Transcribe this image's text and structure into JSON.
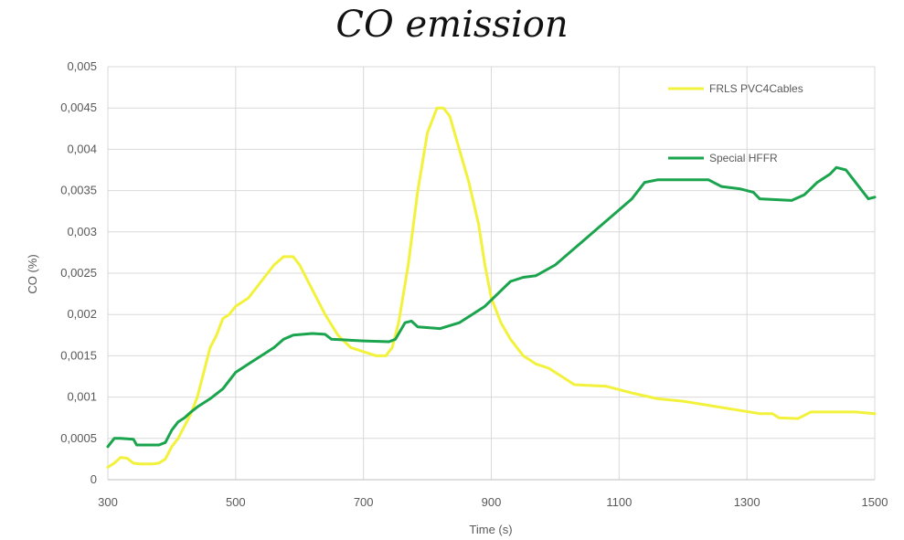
{
  "chart_data": {
    "type": "line",
    "title": "CO emission",
    "xlabel": "Time (s)",
    "ylabel": "CO (%)",
    "xlim": [
      300,
      1500
    ],
    "ylim": [
      0,
      0.005
    ],
    "x_ticks": [
      300,
      500,
      700,
      900,
      1100,
      1300,
      1500
    ],
    "x_tick_labels": [
      "300",
      "500",
      "700",
      "900",
      "1100",
      "1300",
      "1500"
    ],
    "y_ticks": [
      0,
      0.0005,
      0.001,
      0.0015,
      0.002,
      0.0025,
      0.003,
      0.0035,
      0.004,
      0.0045,
      0.005
    ],
    "y_tick_labels": [
      "0",
      "0,0005",
      "0,001",
      "0,0015",
      "0,002",
      "0,0025",
      "0,003",
      "0,0035",
      "0,004",
      "0,0045",
      "0,005"
    ],
    "grid": true,
    "legend_position": "top-right",
    "series": [
      {
        "name": "FRLS PVC4Cables",
        "color": "#f2f23c",
        "points": [
          [
            300,
            0.00015
          ],
          [
            310,
            0.0002
          ],
          [
            320,
            0.00027
          ],
          [
            330,
            0.00026
          ],
          [
            340,
            0.0002
          ],
          [
            350,
            0.00019
          ],
          [
            360,
            0.00019
          ],
          [
            370,
            0.00019
          ],
          [
            380,
            0.0002
          ],
          [
            390,
            0.00025
          ],
          [
            400,
            0.0004
          ],
          [
            410,
            0.0005
          ],
          [
            420,
            0.00065
          ],
          [
            430,
            0.0008
          ],
          [
            440,
            0.001
          ],
          [
            450,
            0.0013
          ],
          [
            460,
            0.0016
          ],
          [
            470,
            0.00175
          ],
          [
            480,
            0.00195
          ],
          [
            490,
            0.002
          ],
          [
            500,
            0.0021
          ],
          [
            520,
            0.0022
          ],
          [
            540,
            0.0024
          ],
          [
            560,
            0.0026
          ],
          [
            575,
            0.0027
          ],
          [
            590,
            0.0027
          ],
          [
            600,
            0.0026
          ],
          [
            620,
            0.0023
          ],
          [
            640,
            0.002
          ],
          [
            660,
            0.00175
          ],
          [
            680,
            0.0016
          ],
          [
            700,
            0.00155
          ],
          [
            720,
            0.0015
          ],
          [
            735,
            0.0015
          ],
          [
            745,
            0.0016
          ],
          [
            755,
            0.0019
          ],
          [
            770,
            0.0026
          ],
          [
            785,
            0.0035
          ],
          [
            800,
            0.0042
          ],
          [
            815,
            0.0045
          ],
          [
            825,
            0.0045
          ],
          [
            835,
            0.0044
          ],
          [
            850,
            0.004
          ],
          [
            865,
            0.0036
          ],
          [
            880,
            0.0031
          ],
          [
            890,
            0.0026
          ],
          [
            900,
            0.0022
          ],
          [
            915,
            0.0019
          ],
          [
            930,
            0.0017
          ],
          [
            950,
            0.0015
          ],
          [
            970,
            0.0014
          ],
          [
            990,
            0.00135
          ],
          [
            1010,
            0.00125
          ],
          [
            1030,
            0.00115
          ],
          [
            1080,
            0.00113
          ],
          [
            1120,
            0.00105
          ],
          [
            1160,
            0.00098
          ],
          [
            1200,
            0.00095
          ],
          [
            1240,
            0.0009
          ],
          [
            1280,
            0.00085
          ],
          [
            1320,
            0.0008
          ],
          [
            1340,
            0.0008
          ],
          [
            1350,
            0.00075
          ],
          [
            1380,
            0.00074
          ],
          [
            1400,
            0.00082
          ],
          [
            1440,
            0.00082
          ],
          [
            1470,
            0.00082
          ],
          [
            1500,
            0.0008
          ]
        ]
      },
      {
        "name": "Special HFFR",
        "color": "#1aa44e",
        "points": [
          [
            300,
            0.0004
          ],
          [
            305,
            0.00045
          ],
          [
            310,
            0.0005
          ],
          [
            320,
            0.0005
          ],
          [
            340,
            0.00049
          ],
          [
            345,
            0.00042
          ],
          [
            360,
            0.00042
          ],
          [
            380,
            0.00042
          ],
          [
            390,
            0.00045
          ],
          [
            400,
            0.0006
          ],
          [
            410,
            0.0007
          ],
          [
            420,
            0.00075
          ],
          [
            430,
            0.00082
          ],
          [
            440,
            0.00088
          ],
          [
            460,
            0.00098
          ],
          [
            480,
            0.0011
          ],
          [
            500,
            0.0013
          ],
          [
            520,
            0.0014
          ],
          [
            540,
            0.0015
          ],
          [
            560,
            0.0016
          ],
          [
            575,
            0.0017
          ],
          [
            590,
            0.00175
          ],
          [
            620,
            0.00177
          ],
          [
            640,
            0.00176
          ],
          [
            650,
            0.0017
          ],
          [
            700,
            0.00168
          ],
          [
            740,
            0.00167
          ],
          [
            750,
            0.0017
          ],
          [
            765,
            0.0019
          ],
          [
            775,
            0.00192
          ],
          [
            785,
            0.00185
          ],
          [
            820,
            0.00183
          ],
          [
            850,
            0.0019
          ],
          [
            870,
            0.002
          ],
          [
            890,
            0.0021
          ],
          [
            910,
            0.00225
          ],
          [
            930,
            0.0024
          ],
          [
            950,
            0.00245
          ],
          [
            970,
            0.00247
          ],
          [
            1000,
            0.0026
          ],
          [
            1030,
            0.0028
          ],
          [
            1060,
            0.003
          ],
          [
            1090,
            0.0032
          ],
          [
            1120,
            0.0034
          ],
          [
            1140,
            0.0036
          ],
          [
            1160,
            0.00363
          ],
          [
            1200,
            0.00363
          ],
          [
            1240,
            0.00363
          ],
          [
            1260,
            0.00355
          ],
          [
            1290,
            0.00352
          ],
          [
            1310,
            0.00348
          ],
          [
            1320,
            0.0034
          ],
          [
            1370,
            0.00338
          ],
          [
            1390,
            0.00345
          ],
          [
            1410,
            0.0036
          ],
          [
            1430,
            0.0037
          ],
          [
            1440,
            0.00378
          ],
          [
            1455,
            0.00375
          ],
          [
            1470,
            0.0036
          ],
          [
            1480,
            0.0035
          ],
          [
            1490,
            0.0034
          ],
          [
            1500,
            0.00342
          ]
        ]
      }
    ]
  }
}
